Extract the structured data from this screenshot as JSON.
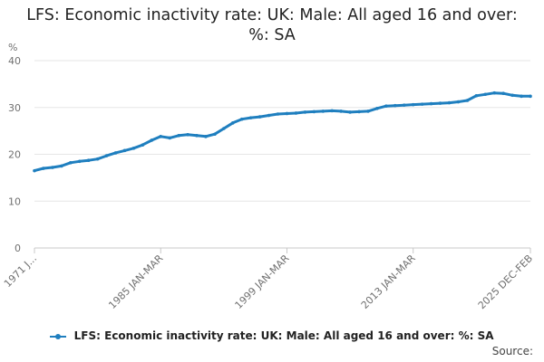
{
  "chart_data": {
    "type": "line",
    "title": "LFS: Economic inactivity rate: UK: Male: All aged 16 and over: %: SA",
    "y_unit_label": "%",
    "ylim": [
      0,
      40
    ],
    "y_ticks": [
      "0",
      "10",
      "20",
      "30",
      "40"
    ],
    "x_tick_labels": [
      "1971 J...",
      "1985 JAN-MAR",
      "1999 JAN-MAR",
      "2013 JAN-MAR",
      "2025 DEC-FEB"
    ],
    "x_tick_years": [
      1971.0,
      1985.0,
      1999.0,
      2013.0,
      2026.0
    ],
    "xlim": [
      1971.0,
      2026.0
    ],
    "grid": true,
    "legend_position": "bottom",
    "series": [
      {
        "name": "LFS: Economic inactivity rate: UK: Male: All aged 16 and over: %: SA",
        "color": "#1f7fbf",
        "points": [
          [
            1971.0,
            16.5
          ],
          [
            1972.0,
            17.0
          ],
          [
            1973.0,
            17.2
          ],
          [
            1974.0,
            17.5
          ],
          [
            1975.0,
            18.2
          ],
          [
            1976.0,
            18.5
          ],
          [
            1977.0,
            18.7
          ],
          [
            1978.0,
            19.0
          ],
          [
            1979.0,
            19.7
          ],
          [
            1980.0,
            20.3
          ],
          [
            1981.0,
            20.8
          ],
          [
            1982.0,
            21.3
          ],
          [
            1983.0,
            22.0
          ],
          [
            1984.0,
            23.0
          ],
          [
            1985.0,
            23.8
          ],
          [
            1986.0,
            23.5
          ],
          [
            1987.0,
            24.0
          ],
          [
            1988.0,
            24.2
          ],
          [
            1989.0,
            24.0
          ],
          [
            1990.0,
            23.8
          ],
          [
            1991.0,
            24.3
          ],
          [
            1992.0,
            25.5
          ],
          [
            1993.0,
            26.7
          ],
          [
            1994.0,
            27.5
          ],
          [
            1995.0,
            27.8
          ],
          [
            1996.0,
            28.0
          ],
          [
            1997.0,
            28.3
          ],
          [
            1998.0,
            28.6
          ],
          [
            1999.0,
            28.7
          ],
          [
            2000.0,
            28.8
          ],
          [
            2001.0,
            29.0
          ],
          [
            2002.0,
            29.1
          ],
          [
            2003.0,
            29.2
          ],
          [
            2004.0,
            29.3
          ],
          [
            2005.0,
            29.2
          ],
          [
            2006.0,
            29.0
          ],
          [
            2007.0,
            29.1
          ],
          [
            2008.0,
            29.2
          ],
          [
            2009.0,
            29.8
          ],
          [
            2010.0,
            30.3
          ],
          [
            2011.0,
            30.4
          ],
          [
            2012.0,
            30.5
          ],
          [
            2013.0,
            30.6
          ],
          [
            2014.0,
            30.7
          ],
          [
            2015.0,
            30.8
          ],
          [
            2016.0,
            30.9
          ],
          [
            2017.0,
            31.0
          ],
          [
            2018.0,
            31.2
          ],
          [
            2019.0,
            31.5
          ],
          [
            2020.0,
            32.5
          ],
          [
            2021.0,
            32.8
          ],
          [
            2022.0,
            33.1
          ],
          [
            2023.0,
            33.0
          ],
          [
            2024.0,
            32.6
          ],
          [
            2025.0,
            32.4
          ],
          [
            2026.0,
            32.4
          ]
        ]
      }
    ]
  },
  "legend": {
    "label": "LFS: Economic inactivity rate: UK: Male: All aged 16 and over: %: SA",
    "icon": "line-with-dot-marker"
  },
  "footer": {
    "source_label": "Source:"
  }
}
